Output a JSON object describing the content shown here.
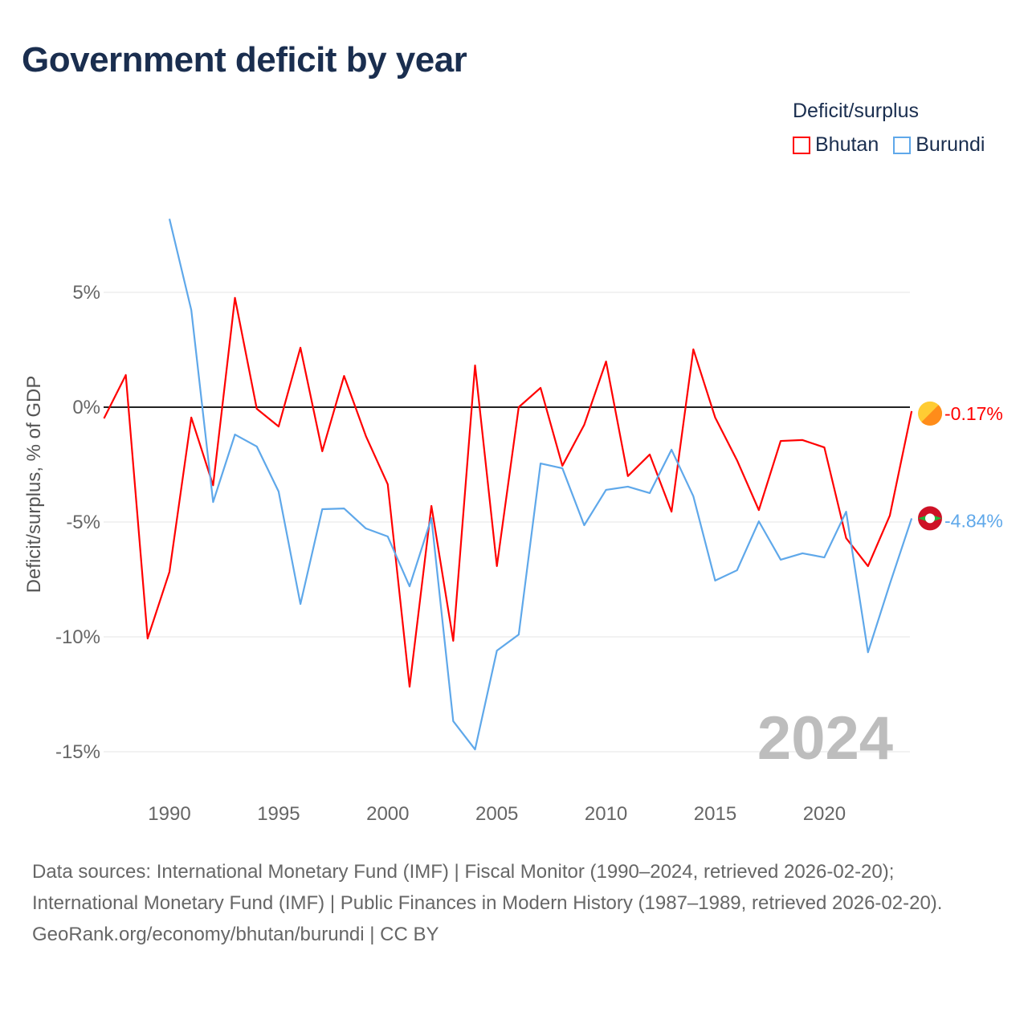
{
  "title": "Government deficit by year",
  "legend": {
    "title": "Deficit/surplus",
    "items": [
      {
        "name": "Bhutan",
        "color": "#ff0000"
      },
      {
        "name": "Burundi",
        "color": "#5fa8ea"
      }
    ]
  },
  "source": {
    "line1": "Data sources: International Monetary Fund (IMF) | Fiscal Monitor (1990–2024, retrieved 2026-02-20); International Monetary Fund (IMF) | Public Finances in Modern History (1987–1989, retrieved 2026-02-20).",
    "line2": "GeoRank.org/economy/bhutan/burundi | CC BY"
  },
  "chart_data": {
    "type": "line",
    "title": "Government deficit by year",
    "ylabel": "Deficit/surplus, % of GDP",
    "xlabel": "",
    "year_label": "2024",
    "xlim": [
      1987,
      2024
    ],
    "ylim": [
      -17,
      10
    ],
    "x_ticks": [
      1990,
      1995,
      2000,
      2005,
      2010,
      2015,
      2020
    ],
    "y_ticks": [
      {
        "value": 5,
        "label": "5%"
      },
      {
        "value": 0,
        "label": "0%"
      },
      {
        "value": -5,
        "label": "-5%"
      },
      {
        "value": -10,
        "label": "-10%"
      },
      {
        "value": -15,
        "label": "-15%"
      }
    ],
    "series": [
      {
        "name": "Bhutan",
        "color": "#ff0000",
        "end_label": "-0.17%",
        "start_year": 1987,
        "values": [
          -0.49,
          1.4,
          -10.07,
          -7.17,
          -0.45,
          -3.4,
          4.76,
          -0.07,
          -0.84,
          2.59,
          -1.92,
          1.36,
          -1.26,
          -3.36,
          -12.17,
          -4.3,
          -10.17,
          1.82,
          -6.92,
          0.0,
          0.84,
          -2.55,
          -0.77,
          1.99,
          -3.0,
          -2.06,
          -4.55,
          2.52,
          -0.45,
          -2.31,
          -4.48,
          -1.47,
          -1.43,
          -1.75,
          -5.7,
          -6.92,
          -4.72,
          -0.17
        ]
      },
      {
        "name": "Burundi",
        "color": "#5fa8ea",
        "end_label": "-4.84%",
        "start_year": 1990,
        "values": [
          8.2,
          4.23,
          -4.13,
          -1.19,
          -1.71,
          -3.67,
          -8.57,
          -4.44,
          -4.41,
          -5.28,
          -5.63,
          -7.8,
          -4.83,
          -13.67,
          -14.9,
          -10.6,
          -9.9,
          -2.45,
          -2.66,
          -5.14,
          -3.6,
          -3.46,
          -3.74,
          -1.85,
          -3.88,
          -7.55,
          -7.1,
          -4.97,
          -6.64,
          -6.36,
          -6.54,
          -4.55,
          -10.67,
          -7.7,
          -4.84
        ]
      }
    ]
  }
}
